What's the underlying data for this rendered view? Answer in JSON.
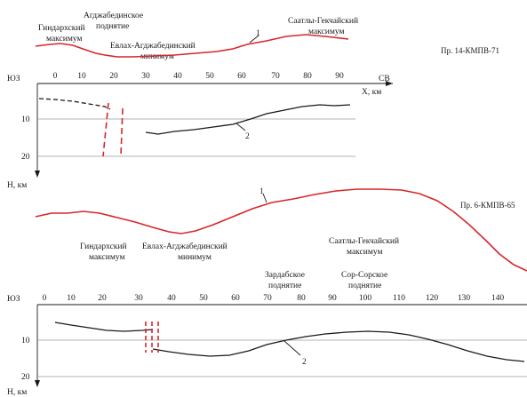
{
  "panel_top": {
    "profile_label": "Пр. 14-КМПВ-71",
    "gravity_curve_label": "1",
    "depth_curve_label": "2",
    "dir_left": "ЮЗ",
    "dir_right": "СВ",
    "x_axis_label": "X, км",
    "depth_axis_label": "Н, км",
    "x_ticks": [
      "0",
      "10",
      "20",
      "30",
      "40",
      "50",
      "60",
      "70",
      "80",
      "90"
    ],
    "depth_ticks": [
      "10",
      "20"
    ],
    "annotations": [
      {
        "id": "gindar-1",
        "text": "Гиндархский"
      },
      {
        "id": "gindar-2",
        "text": "максимум"
      },
      {
        "id": "agdzh-1",
        "text": "Агджабединское"
      },
      {
        "id": "agdzh-2",
        "text": "поднятие"
      },
      {
        "id": "evlakh-1",
        "text": "Евлах-Агджабединский"
      },
      {
        "id": "evlakh-2",
        "text": "минимум"
      },
      {
        "id": "saatly-1",
        "text": "Саатлы-Гекчайский"
      },
      {
        "id": "saatly-2",
        "text": "максимум"
      }
    ]
  },
  "panel_bottom": {
    "profile_label": "Пр. 6-КМПВ-65",
    "gravity_curve_label": "1",
    "depth_curve_label": "2",
    "dir_left": "ЮЗ",
    "depth_axis_label": "Н, км",
    "x_ticks": [
      "0",
      "10",
      "20",
      "30",
      "40",
      "50",
      "60",
      "70",
      "80",
      "90",
      "100",
      "110",
      "120",
      "130",
      "140"
    ],
    "depth_ticks": [
      "10",
      "20"
    ],
    "annotations": [
      {
        "id": "gindar-1",
        "text": "Гиндархский"
      },
      {
        "id": "gindar-2",
        "text": "максимум"
      },
      {
        "id": "evlakh-1",
        "text": "Евлах-Агджабединский"
      },
      {
        "id": "evlakh-2",
        "text": "минимум"
      },
      {
        "id": "saatly-1",
        "text": "Саатлы-Гекчайский"
      },
      {
        "id": "saatly-2",
        "text": "максимум"
      },
      {
        "id": "zard-1",
        "text": "Зардабское"
      },
      {
        "id": "zard-2",
        "text": "поднятие"
      },
      {
        "id": "sor-1",
        "text": "Сор-Сорское"
      },
      {
        "id": "sor-2",
        "text": "поднятие"
      }
    ]
  },
  "colors": {
    "gravity_curve": "#d8262a",
    "depth_curve": "#1a1a1a",
    "grid": "#9a9a9a"
  }
}
